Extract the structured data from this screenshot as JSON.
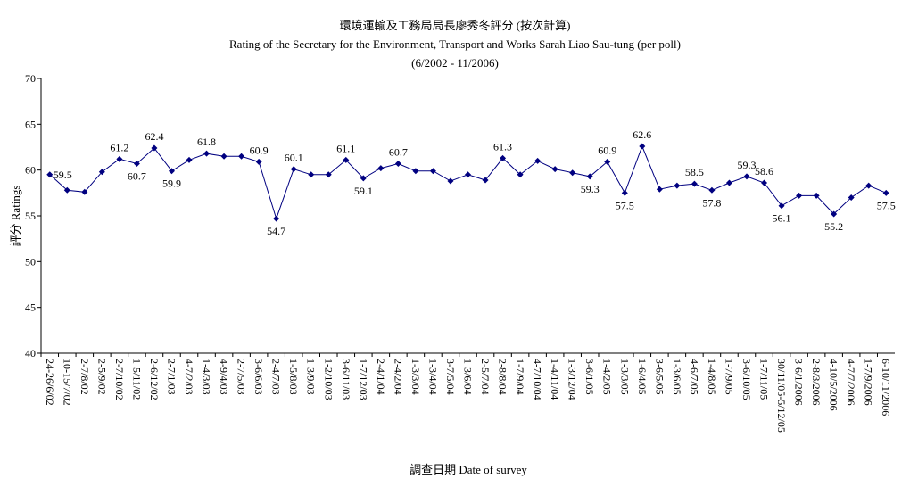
{
  "chart_data": {
    "type": "line",
    "title": "環境運輸及工務局局長廖秀冬評分 (按次計算)",
    "subtitle": "Rating of the Secretary for the Environment, Transport and Works Sarah Liao Sau-tung  (per poll)",
    "period": "(6/2002 - 11/2006)",
    "y_label": "評分 Ratings",
    "x_label": "調查日期 Date of survey",
    "categories": [
      "24-26/6/02",
      "10-15/7/02",
      "2-7/8/02",
      "2-5/9/02",
      "2-7/10/02",
      "1-5/11/02",
      "2-6/12/02",
      "2-7/1/03",
      "4-7/2/03",
      "1-4/3/03",
      "4-9/4/03",
      "2-7/5/03",
      "3-6/6/03",
      "2-4/7/03",
      "1-5/8/03",
      "1-3/9/03",
      "1-2/10/03",
      "3-6/11/03",
      "1-7/12/03",
      "2-4/1/04",
      "2-4/2/04",
      "1-3/3/04",
      "1-3/4/04",
      "3-7/5/04",
      "1-3/6/04",
      "2-5/7/04",
      "2-8/8/04",
      "1-7/9/04",
      "4-7/10/04",
      "1-4/11/04",
      "1-3/12/04",
      "3-6/1/05",
      "1-4/2/05",
      "1-3/3/05",
      "1-6/4/05",
      "3-6/5/05",
      "1-3/6/05",
      "4-6/7/05",
      "1-4/8/05",
      "1-7/9/05",
      "3-6/10/05",
      "1-7/11/05",
      "30/11/05-5/12/05",
      "3-6/1/2006",
      "2-8/3/2006",
      "4-10/5/2006",
      "4-7/7/2006",
      "1-7/9/2006",
      "6-10/11/2006"
    ],
    "series": [
      {
        "name": "Ratings",
        "color": "#000080",
        "values": [
          59.5,
          57.8,
          57.6,
          59.8,
          61.2,
          60.7,
          62.4,
          59.9,
          61.1,
          61.8,
          61.5,
          61.5,
          60.9,
          54.7,
          60.1,
          59.5,
          59.5,
          61.1,
          59.1,
          60.2,
          60.7,
          59.9,
          59.9,
          58.8,
          59.5,
          58.9,
          61.3,
          59.5,
          61.0,
          60.1,
          59.7,
          59.3,
          60.9,
          57.5,
          62.6,
          57.9,
          58.3,
          58.5,
          57.8,
          58.6,
          59.3,
          58.6,
          56.1,
          57.2,
          57.2,
          55.2,
          57.0,
          58.3,
          57.5
        ],
        "value_labels": [
          "59.5",
          null,
          null,
          null,
          "61.2",
          "60.7",
          "62.4",
          "59.9",
          null,
          "61.8",
          null,
          null,
          "60.9",
          "54.7",
          "60.1",
          null,
          null,
          "61.1",
          "59.1",
          null,
          "60.7",
          null,
          null,
          null,
          null,
          null,
          "61.3",
          null,
          null,
          null,
          null,
          "59.3",
          "60.9",
          "57.5",
          "62.6",
          null,
          null,
          "58.5",
          "57.8",
          null,
          "59.3",
          "58.6",
          "56.1",
          null,
          null,
          "55.2",
          null,
          null,
          "57.5"
        ]
      }
    ],
    "ylim": [
      40,
      70
    ],
    "yticks": [
      40,
      45,
      50,
      55,
      60,
      65,
      70
    ],
    "grid": false
  }
}
